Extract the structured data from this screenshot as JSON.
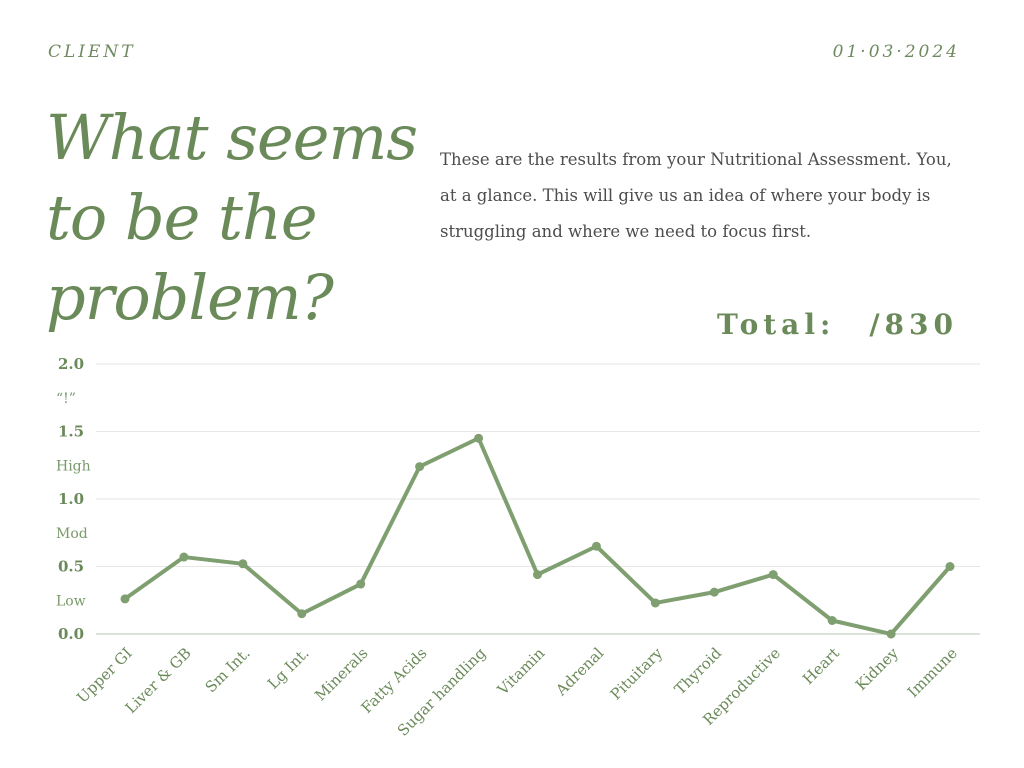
{
  "header": {
    "client_label": "CLIENT",
    "date": "01·03·2024"
  },
  "headline": "What seems to be the problem?",
  "intro": "These are the results from your Nutritional Assessment. You, at a glance. This will give us an idea of where your body is struggling and where we need to focus first.",
  "total": {
    "label": "Total:",
    "denominator": "/830"
  },
  "colors": {
    "accent": "#6b8a5a",
    "line": "#7f9f70",
    "grid": "#e6e6e6",
    "text": "#4d4d4d"
  },
  "chart_data": {
    "type": "line",
    "categories": [
      "Upper GI",
      "Liver & GB",
      "Sm Int.",
      "Lg Int.",
      "Minerals",
      "Fatty Acids",
      "Sugar handling",
      "Vitamin",
      "Adrenal",
      "Pituitary",
      "Thyroid",
      "Reproductive",
      "Heart",
      "Kidney",
      "Immune"
    ],
    "series": [
      {
        "values": [
          0.26,
          0.57,
          0.52,
          0.15,
          0.37,
          1.24,
          1.45,
          0.44,
          0.65,
          0.23,
          0.31,
          0.44,
          0.1,
          0.0,
          0.5
        ]
      }
    ],
    "ylim": [
      0,
      2
    ],
    "yticks": [
      "0.0",
      "0.5",
      "1.0",
      "1.5",
      "2.0"
    ],
    "level_labels": [
      {
        "value": 0.25,
        "label": "Low"
      },
      {
        "value": 0.75,
        "label": "Mod"
      },
      {
        "value": 1.25,
        "label": "High"
      },
      {
        "value": 1.75,
        "label": "“!”"
      }
    ],
    "grid": true,
    "legend": "none"
  }
}
